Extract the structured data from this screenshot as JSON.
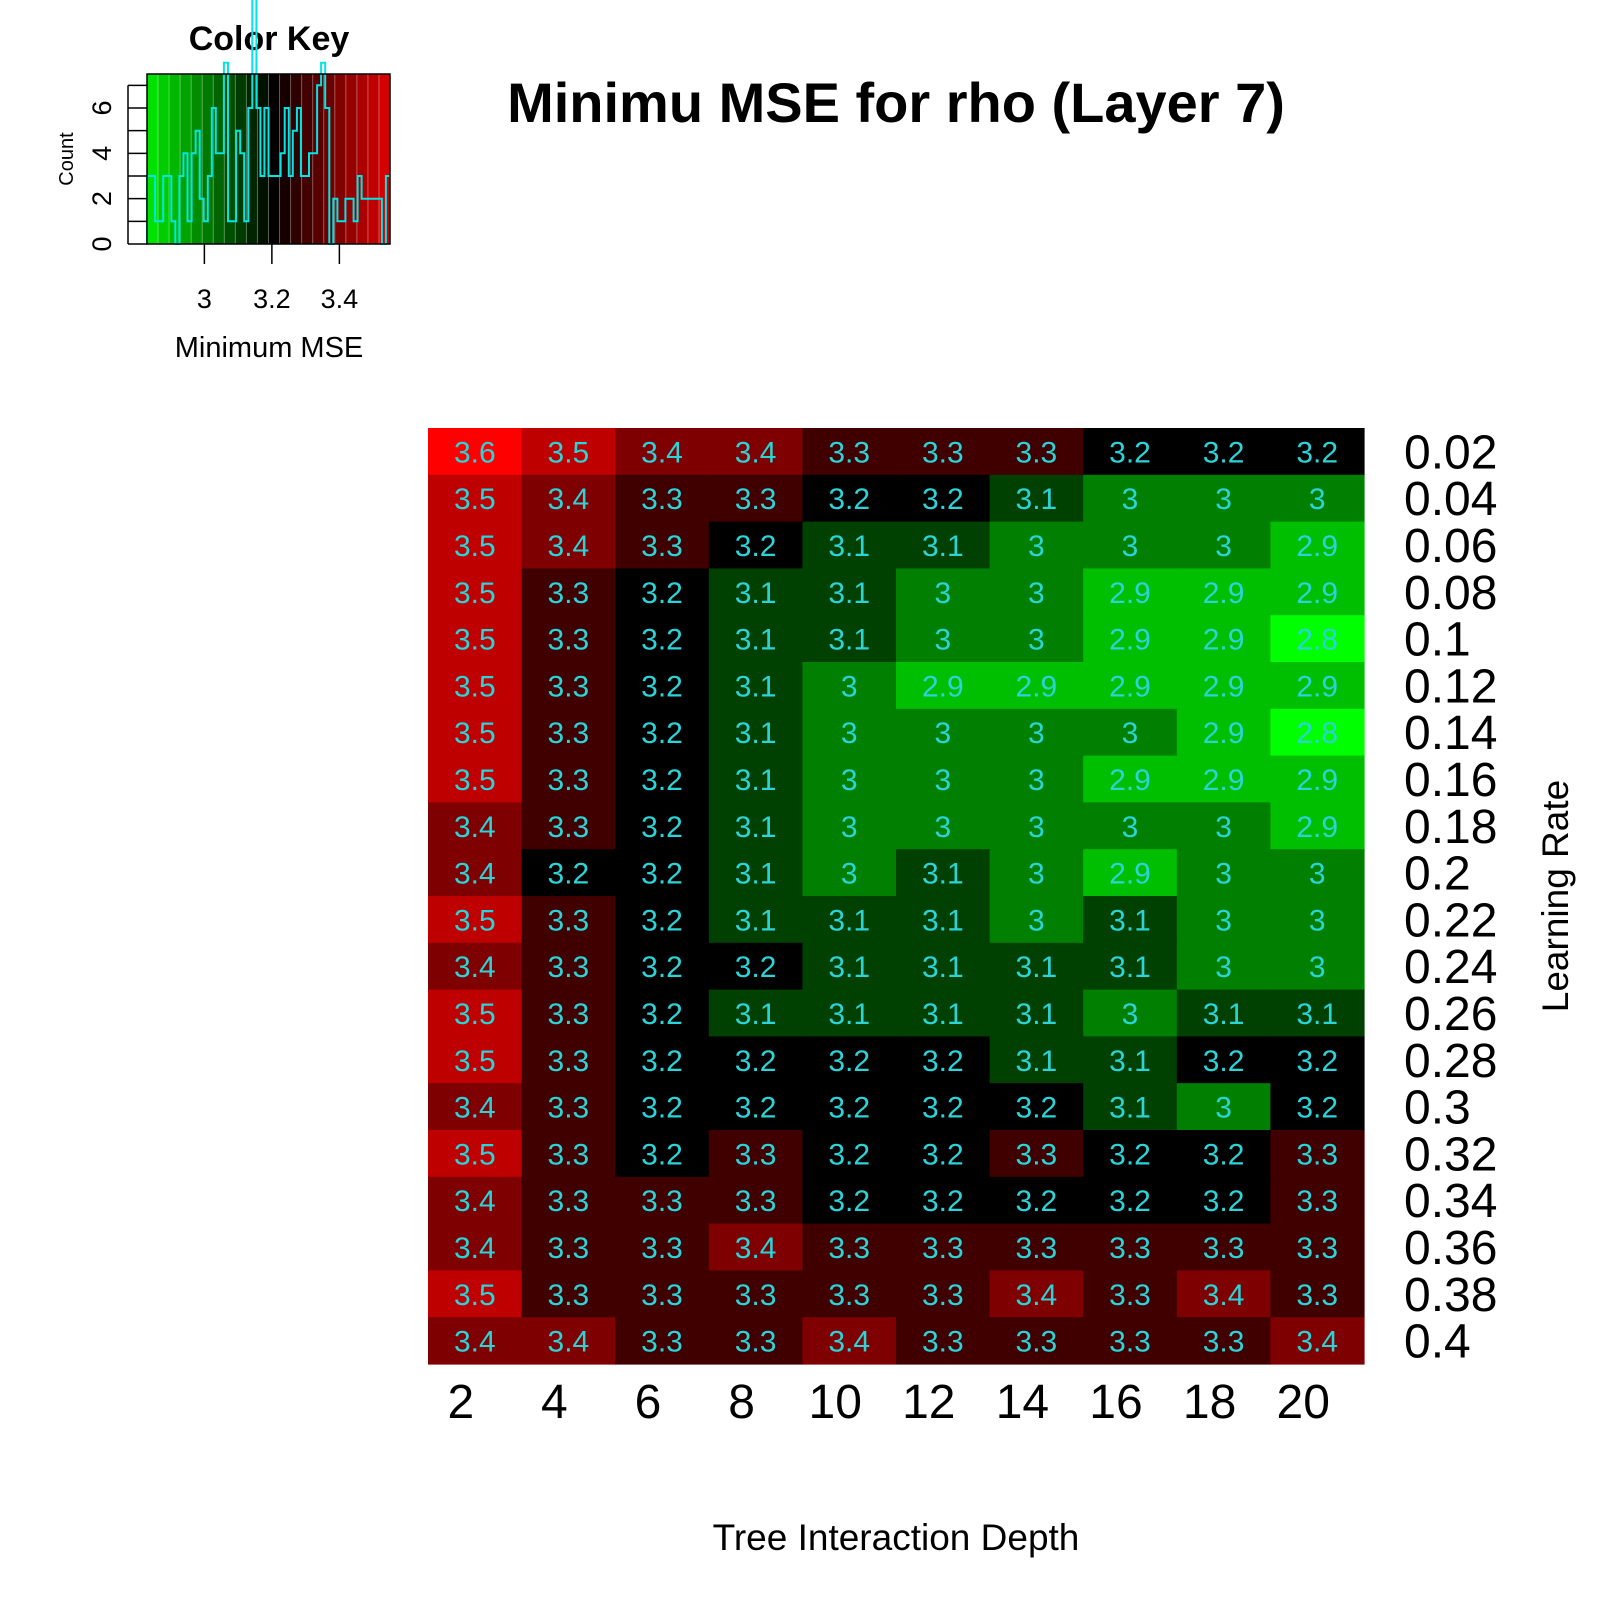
{
  "chart_data": {
    "type": "heatmap",
    "title": "Minimu MSE for rho (Layer 7)",
    "xlabel": "Tree Interaction Depth",
    "ylabel": "Learning Rate",
    "x_categories": [
      "2",
      "4",
      "6",
      "8",
      "10",
      "12",
      "14",
      "16",
      "18",
      "20"
    ],
    "y_categories": [
      "0.02",
      "0.04",
      "0.06",
      "0.08",
      "0.1",
      "0.12",
      "0.14",
      "0.16",
      "0.18",
      "0.2",
      "0.22",
      "0.24",
      "0.26",
      "0.28",
      "0.3",
      "0.32",
      "0.34",
      "0.36",
      "0.38",
      "0.4"
    ],
    "values": [
      [
        3.6,
        3.5,
        3.4,
        3.4,
        3.3,
        3.3,
        3.3,
        3.2,
        3.2,
        3.2
      ],
      [
        3.5,
        3.4,
        3.3,
        3.3,
        3.2,
        3.2,
        3.1,
        3,
        3,
        3
      ],
      [
        3.5,
        3.4,
        3.3,
        3.2,
        3.1,
        3.1,
        3,
        3,
        3,
        2.9
      ],
      [
        3.5,
        3.3,
        3.2,
        3.1,
        3.1,
        3,
        3,
        2.9,
        2.9,
        2.9
      ],
      [
        3.5,
        3.3,
        3.2,
        3.1,
        3.1,
        3,
        3,
        2.9,
        2.9,
        2.8
      ],
      [
        3.5,
        3.3,
        3.2,
        3.1,
        3,
        2.9,
        2.9,
        2.9,
        2.9,
        2.9
      ],
      [
        3.5,
        3.3,
        3.2,
        3.1,
        3,
        3,
        3,
        3,
        2.9,
        2.8
      ],
      [
        3.5,
        3.3,
        3.2,
        3.1,
        3,
        3,
        3,
        2.9,
        2.9,
        2.9
      ],
      [
        3.4,
        3.3,
        3.2,
        3.1,
        3,
        3,
        3,
        3,
        3,
        2.9
      ],
      [
        3.4,
        3.2,
        3.2,
        3.1,
        3,
        3.1,
        3,
        2.9,
        3,
        3
      ],
      [
        3.5,
        3.3,
        3.2,
        3.1,
        3.1,
        3.1,
        3,
        3.1,
        3,
        3
      ],
      [
        3.4,
        3.3,
        3.2,
        3.2,
        3.1,
        3.1,
        3.1,
        3.1,
        3,
        3
      ],
      [
        3.5,
        3.3,
        3.2,
        3.1,
        3.1,
        3.1,
        3.1,
        3,
        3.1,
        3.1
      ],
      [
        3.5,
        3.3,
        3.2,
        3.2,
        3.2,
        3.2,
        3.1,
        3.1,
        3.2,
        3.2
      ],
      [
        3.4,
        3.3,
        3.2,
        3.2,
        3.2,
        3.2,
        3.2,
        3.1,
        3,
        3.2
      ],
      [
        3.5,
        3.3,
        3.2,
        3.3,
        3.2,
        3.2,
        3.3,
        3.2,
        3.2,
        3.3
      ],
      [
        3.4,
        3.3,
        3.3,
        3.3,
        3.2,
        3.2,
        3.2,
        3.2,
        3.2,
        3.3
      ],
      [
        3.4,
        3.3,
        3.3,
        3.4,
        3.3,
        3.3,
        3.3,
        3.3,
        3.3,
        3.3
      ],
      [
        3.5,
        3.3,
        3.3,
        3.3,
        3.3,
        3.3,
        3.4,
        3.3,
        3.4,
        3.3
      ],
      [
        3.4,
        3.4,
        3.3,
        3.3,
        3.4,
        3.3,
        3.3,
        3.3,
        3.3,
        3.4
      ]
    ],
    "color_scale": {
      "low": "#00ff00",
      "mid": "#000000",
      "high": "#ff0000",
      "range": [
        2.8,
        3.6
      ]
    },
    "cell_label_color": "#2ad4d8",
    "color_key": {
      "title": "Color Key",
      "xlabel": "Minimum MSE",
      "ylabel": "Count",
      "x_ticks": [
        "3",
        "3.2",
        "3.4"
      ],
      "y_ticks": [
        "0",
        "2",
        "4",
        "6"
      ],
      "histogram_color": "#00e5e5"
    }
  }
}
